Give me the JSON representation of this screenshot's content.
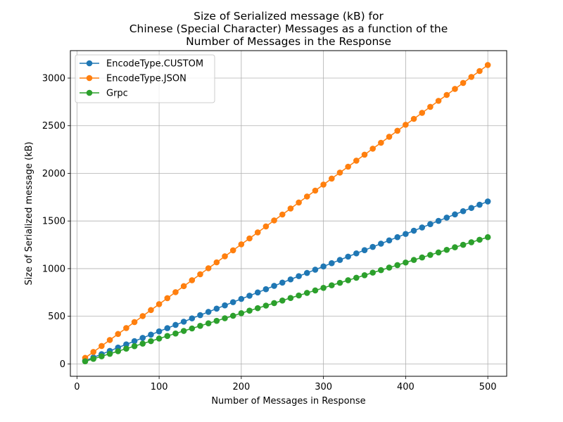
{
  "chart_data": {
    "type": "line",
    "title": [
      "Size of Serialized message (kB) for",
      "Chinese (Special Character) Messages as a function of the",
      "Number of Messages in the Response"
    ],
    "xlabel": "Number of Messages in Response",
    "ylabel": "Size of Serialized message (kB)",
    "xlim": [
      -8,
      523
    ],
    "ylim": [
      -130,
      3288
    ],
    "xticks": [
      0,
      100,
      200,
      300,
      400,
      500
    ],
    "yticks": [
      0,
      500,
      1000,
      1500,
      2000,
      2500,
      3000
    ],
    "grid": true,
    "legend_position": "upper-left",
    "x": [
      10,
      20,
      30,
      40,
      50,
      60,
      70,
      80,
      90,
      100,
      110,
      120,
      130,
      140,
      150,
      160,
      170,
      180,
      190,
      200,
      210,
      220,
      230,
      240,
      250,
      260,
      270,
      280,
      290,
      300,
      310,
      320,
      330,
      340,
      350,
      360,
      370,
      380,
      390,
      400,
      410,
      420,
      430,
      440,
      450,
      460,
      470,
      480,
      490,
      500
    ],
    "series": [
      {
        "name": "EncodeType.CUSTOM",
        "color": "#1f77b4",
        "values": [
          34,
          68,
          102,
          136,
          171,
          205,
          239,
          273,
          307,
          341,
          375,
          409,
          443,
          478,
          512,
          546,
          580,
          614,
          648,
          682,
          716,
          750,
          784,
          819,
          853,
          887,
          921,
          955,
          989,
          1023,
          1057,
          1091,
          1126,
          1160,
          1194,
          1228,
          1262,
          1296,
          1330,
          1364,
          1398,
          1432,
          1467,
          1501,
          1535,
          1569,
          1603,
          1637,
          1671,
          1705
        ]
      },
      {
        "name": "EncodeType.JSON",
        "color": "#ff7f0e",
        "values": [
          63,
          125,
          188,
          251,
          314,
          376,
          439,
          502,
          565,
          627,
          690,
          753,
          816,
          878,
          941,
          1004,
          1066,
          1129,
          1192,
          1255,
          1317,
          1380,
          1443,
          1506,
          1568,
          1631,
          1694,
          1757,
          1819,
          1882,
          1945,
          2008,
          2070,
          2133,
          2196,
          2259,
          2321,
          2384,
          2447,
          2510,
          2572,
          2635,
          2698,
          2761,
          2823,
          2886,
          2949,
          3012,
          3074,
          3137
        ]
      },
      {
        "name": "Grpc",
        "color": "#2ca02c",
        "values": [
          27,
          53,
          80,
          106,
          133,
          160,
          186,
          213,
          239,
          266,
          293,
          319,
          346,
          372,
          399,
          426,
          452,
          479,
          505,
          532,
          559,
          585,
          612,
          638,
          665,
          692,
          718,
          745,
          771,
          798,
          825,
          851,
          878,
          904,
          931,
          958,
          984,
          1011,
          1037,
          1064,
          1091,
          1117,
          1144,
          1170,
          1197,
          1224,
          1250,
          1277,
          1303,
          1330
        ]
      }
    ]
  }
}
